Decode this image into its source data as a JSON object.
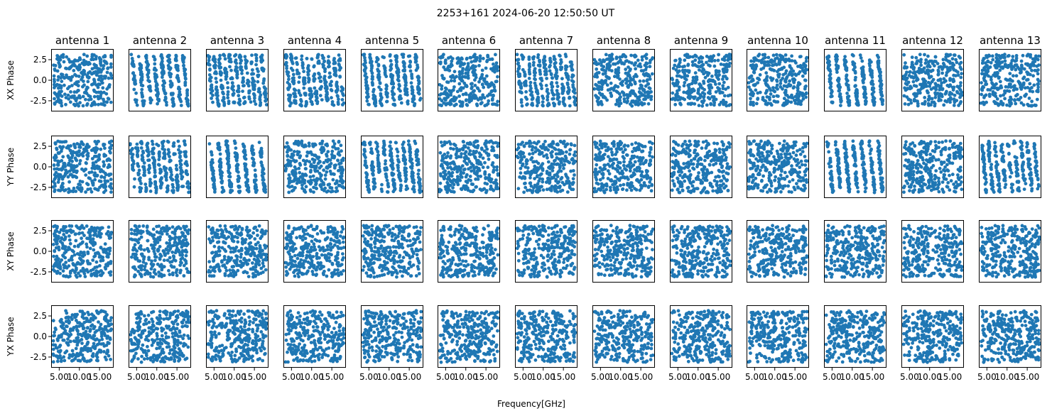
{
  "chart_data": {
    "type": "scatter",
    "title": "2253+161 2024-06-20 12:50:50 UT",
    "columns": [
      "antenna 1",
      "antenna 2",
      "antenna 3",
      "antenna 4",
      "antenna 5",
      "antenna 6",
      "antenna 7",
      "antenna 8",
      "antenna 9",
      "antenna 10",
      "antenna 11",
      "antenna 12",
      "antenna 13"
    ],
    "rows": [
      "XX Phase",
      "YY Phase",
      "XY Phase",
      "YX Phase"
    ],
    "xlabel": "Frequency[GHz]",
    "xlim": [
      3.0,
      18.5
    ],
    "ylim": [
      -3.8,
      3.8
    ],
    "xticks": [
      5.0,
      10.0,
      15.0
    ],
    "xtick_labels": [
      "5.00",
      "10.00",
      "15.00"
    ],
    "yticks": [
      2.5,
      0.0,
      -2.5
    ],
    "ytick_labels": [
      "2.5",
      "0.0",
      "-2.5"
    ],
    "marker_color": "#1f77b4",
    "points_per_panel": 300,
    "x_range_data": [
      3.5,
      18.0
    ],
    "y_range_data": [
      -3.14,
      3.14
    ],
    "panel_patterns": [
      [
        "noise",
        "stripes",
        "stripes",
        "stripes",
        "stripes",
        "noise",
        "stripes",
        "noise",
        "noise",
        "noise",
        "stripes",
        "noise",
        "noise"
      ],
      [
        "noise",
        "stripes",
        "stripes",
        "noise",
        "stripes",
        "noise",
        "noise",
        "noise",
        "noise",
        "noise",
        "stripes",
        "noise",
        "stripes"
      ],
      [
        "noise",
        "noise",
        "noise",
        "noise",
        "noise",
        "noise",
        "noise",
        "noise",
        "noise",
        "noise",
        "noise",
        "noise",
        "noise"
      ],
      [
        "noise",
        "noise",
        "noise",
        "noise",
        "noise",
        "noise",
        "noise",
        "noise",
        "noise",
        "noise",
        "noise",
        "noise",
        "noise"
      ]
    ]
  }
}
